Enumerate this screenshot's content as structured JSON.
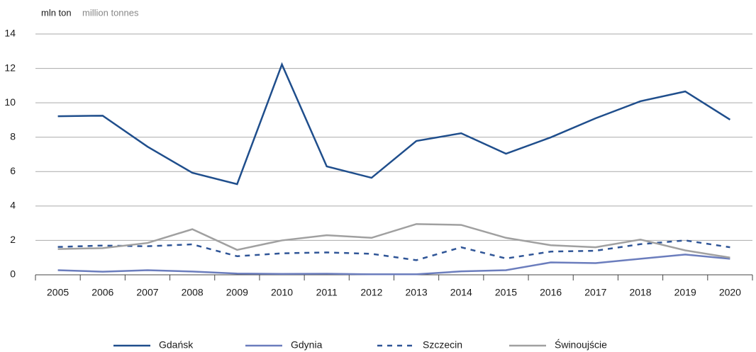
{
  "chart_data": {
    "type": "line",
    "y_label": "mln ton",
    "y_label_en": "million tonnes",
    "categories": [
      "2005",
      "2006",
      "2007",
      "2008",
      "2009",
      "2010",
      "2011",
      "2012",
      "2013",
      "2014",
      "2015",
      "2016",
      "2017",
      "2018",
      "2019",
      "2020"
    ],
    "series": [
      {
        "name": "Gdańsk",
        "color": "#1f4e8c",
        "dashed": false,
        "values": [
          9.22,
          9.25,
          7.45,
          5.93,
          5.27,
          12.23,
          6.3,
          5.64,
          7.78,
          8.23,
          7.04,
          7.99,
          9.1,
          10.09,
          10.66,
          9.02
        ]
      },
      {
        "name": "Gdynia",
        "color": "#6b7dbd",
        "dashed": false,
        "values": [
          0.27,
          0.18,
          0.27,
          0.19,
          0.07,
          0.05,
          0.06,
          0.03,
          0.03,
          0.2,
          0.27,
          0.72,
          0.68,
          0.93,
          1.18,
          0.93
        ]
      },
      {
        "name": "Szczecin",
        "color": "#2f5597",
        "dashed": true,
        "values": [
          1.62,
          1.7,
          1.66,
          1.77,
          1.08,
          1.25,
          1.3,
          1.22,
          0.85,
          1.6,
          0.95,
          1.35,
          1.4,
          1.78,
          2.0,
          1.6
        ]
      },
      {
        "name": "Świnoujście",
        "color": "#a0a0a0",
        "dashed": false,
        "values": [
          1.5,
          1.55,
          1.85,
          2.65,
          1.45,
          2.0,
          2.3,
          2.15,
          2.95,
          2.9,
          2.15,
          1.72,
          1.6,
          2.05,
          1.42,
          1.0
        ]
      }
    ],
    "ylim": [
      0,
      14
    ],
    "yticks": [
      0,
      2,
      4,
      6,
      8,
      10,
      12,
      14
    ],
    "grid": true,
    "legend": "bottom"
  }
}
